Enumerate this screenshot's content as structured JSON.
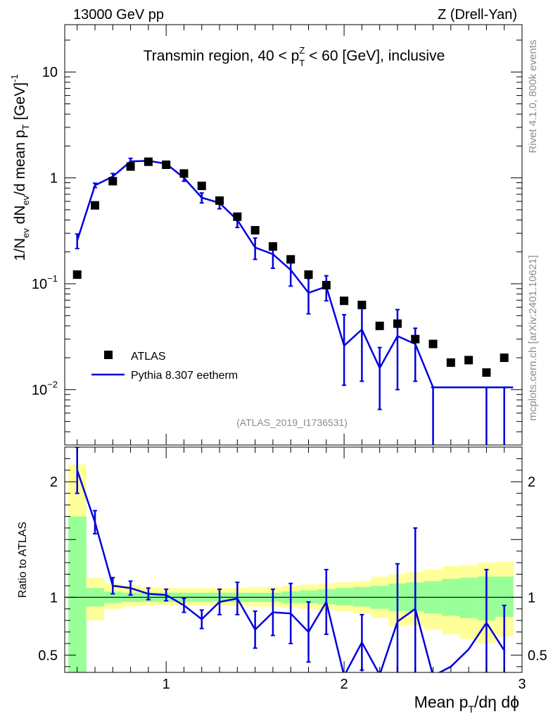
{
  "header": {
    "left": "13000 GeV pp",
    "right": "Z (Drell-Yan)"
  },
  "side": {
    "rivet": "Rivet 4.1.0,  800k events",
    "mcplots": "mcplots.cern.ch [arXiv:2401.10621]"
  },
  "chart_data": [
    {
      "type": "scatter",
      "panel": "main",
      "title": "Transmin region, 40 < p_T^Z < 60 [GeV], inclusive",
      "title_parts": {
        "a": "Transmin region, 40 < p",
        "sup": "Z",
        "sub": "T",
        "b": " < 60 [GeV], inclusive"
      },
      "ylabel": "1/N_ev dN_ev/d mean p_T [GeV]^-1",
      "ylabel_parts": {
        "a": "1/N",
        "b": "ev",
        "c": " dN",
        "d": "ev",
        "e": "/d mean p",
        "f": "T",
        "g": " [GeV]",
        "h": "-1"
      },
      "yscale": "log",
      "ylim": [
        0.003,
        28
      ],
      "xlim": [
        0.43,
        3.0
      ],
      "yticks": [
        {
          "value": 10,
          "label": "10",
          "sup": ""
        },
        {
          "value": 1,
          "label": "1",
          "sup": ""
        },
        {
          "value": 0.1,
          "label": "10",
          "sup": "−1"
        },
        {
          "value": 0.01,
          "label": "10",
          "sup": "−2"
        }
      ],
      "watermark": "(ATLAS_2019_I1736531)",
      "legend_position": "bottom-left",
      "series": [
        {
          "name": "ATLAS",
          "style": "markers",
          "color": "#000000",
          "x": [
            0.5,
            0.6,
            0.7,
            0.8,
            0.9,
            1.0,
            1.1,
            1.2,
            1.3,
            1.4,
            1.5,
            1.6,
            1.7,
            1.8,
            1.9,
            2.0,
            2.1,
            2.2,
            2.3,
            2.4,
            2.5,
            2.6,
            2.7,
            2.8,
            2.9
          ],
          "y": [
            0.122,
            0.55,
            0.93,
            1.28,
            1.42,
            1.33,
            1.1,
            0.84,
            0.61,
            0.43,
            0.32,
            0.225,
            0.17,
            0.122,
            0.097,
            0.069,
            0.063,
            0.04,
            0.042,
            0.03,
            0.027,
            0.018,
            0.019,
            0.0145,
            0.02
          ]
        },
        {
          "name": "Pythia 8.307 eetherm",
          "style": "line",
          "color": "#0000e0",
          "x": [
            0.5,
            0.6,
            0.7,
            0.8,
            0.9,
            1.0,
            1.1,
            1.2,
            1.3,
            1.4,
            1.5,
            1.6,
            1.7,
            1.8,
            1.9,
            2.0,
            2.1,
            2.2,
            2.3,
            2.4,
            2.5,
            2.6,
            2.7,
            2.8,
            2.9
          ],
          "y": [
            0.255,
            0.85,
            1.03,
            1.43,
            1.45,
            1.36,
            1.0,
            0.65,
            0.58,
            0.4,
            0.22,
            0.19,
            0.135,
            0.082,
            0.094,
            0.026,
            0.037,
            0.016,
            0.032,
            0.027,
            0.0105,
            0.0105,
            0.0105,
            0.0105,
            0.0105
          ],
          "yerr_low": [
            0.04,
            0.04,
            0.07,
            0.1,
            0.08,
            0.06,
            0.07,
            0.07,
            0.07,
            0.06,
            0.05,
            0.05,
            0.04,
            0.03,
            0.025,
            0.015,
            0.025,
            0.0095,
            0.022,
            0.015,
            0.0105,
            0.0,
            0.0,
            0.0105,
            0.0105
          ],
          "yerr_high": [
            0.04,
            0.04,
            0.07,
            0.1,
            0.08,
            0.06,
            0.07,
            0.07,
            0.07,
            0.06,
            0.05,
            0.05,
            0.04,
            0.03,
            0.025,
            0.025,
            0.03,
            0.009,
            0.025,
            0.011,
            0.0,
            0.0,
            0.0,
            0.0,
            0.0
          ]
        }
      ]
    },
    {
      "type": "line",
      "panel": "ratio",
      "ylabel": "Ratio to ATLAS",
      "xlabel": "Mean p_T/dη dϕ",
      "xlabel_parts": {
        "a": "Mean p",
        "b": "T",
        "c": "/dη dϕ"
      },
      "ylim": [
        0.35,
        2.3
      ],
      "xlim": [
        0.43,
        3.0
      ],
      "xticks": [
        {
          "value": 1,
          "label": "1"
        },
        {
          "value": 2,
          "label": "2"
        },
        {
          "value": 3,
          "label": "3"
        }
      ],
      "yticks": [
        {
          "value": 0.5,
          "label": "0.5"
        },
        {
          "value": 1,
          "label": "1"
        },
        {
          "value": 2,
          "label": "2"
        }
      ],
      "bands": {
        "edges": [
          0.45,
          0.55,
          0.65,
          0.75,
          0.85,
          0.95,
          1.05,
          1.15,
          1.25,
          1.35,
          1.45,
          1.55,
          1.65,
          1.75,
          1.85,
          1.95,
          2.05,
          2.15,
          2.25,
          2.35,
          2.45,
          2.55,
          2.65,
          2.75,
          2.85,
          2.95
        ],
        "yellow_color": "#ffff99",
        "green_color": "#99ff99",
        "yellow_low": [
          0.3,
          0.8,
          0.9,
          0.92,
          0.93,
          0.93,
          0.93,
          0.93,
          0.93,
          0.93,
          0.92,
          0.92,
          0.91,
          0.9,
          0.89,
          0.88,
          0.86,
          0.82,
          0.75,
          0.76,
          0.72,
          0.68,
          0.64,
          0.6,
          0.66
        ],
        "yellow_high": [
          2.15,
          1.17,
          1.12,
          1.1,
          1.09,
          1.08,
          1.08,
          1.08,
          1.08,
          1.08,
          1.09,
          1.09,
          1.1,
          1.11,
          1.12,
          1.13,
          1.14,
          1.18,
          1.2,
          1.22,
          1.24,
          1.27,
          1.28,
          1.3,
          1.31
        ],
        "green_low": [
          0.3,
          0.92,
          0.95,
          0.96,
          0.96,
          0.96,
          0.96,
          0.96,
          0.96,
          0.96,
          0.96,
          0.96,
          0.95,
          0.95,
          0.94,
          0.93,
          0.92,
          0.9,
          0.88,
          0.88,
          0.86,
          0.84,
          0.82,
          0.8,
          0.83
        ],
        "green_high": [
          1.7,
          1.08,
          1.05,
          1.04,
          1.04,
          1.04,
          1.04,
          1.04,
          1.04,
          1.04,
          1.04,
          1.04,
          1.05,
          1.06,
          1.07,
          1.08,
          1.09,
          1.1,
          1.12,
          1.13,
          1.14,
          1.16,
          1.17,
          1.18,
          1.18
        ]
      },
      "series": [
        {
          "name": "Pythia 8.307 eetherm / ATLAS",
          "color": "#0000e0",
          "x": [
            0.5,
            0.6,
            0.7,
            0.8,
            0.9,
            1.0,
            1.1,
            1.2,
            1.3,
            1.4,
            1.5,
            1.6,
            1.7,
            1.8,
            1.9,
            2.0,
            2.1,
            2.2,
            2.3,
            2.4,
            2.5,
            2.6,
            2.7,
            2.8,
            2.9
          ],
          "y": [
            2.1,
            1.65,
            1.1,
            1.08,
            1.03,
            1.02,
            0.93,
            0.81,
            0.96,
            0.99,
            0.72,
            0.87,
            0.86,
            0.7,
            0.96,
            0.32,
            0.61,
            0.33,
            0.79,
            0.9,
            0.32,
            0.4,
            0.55,
            0.78,
            0.54
          ],
          "yerr_low": [
            0.2,
            0.1,
            0.07,
            0.06,
            0.05,
            0.05,
            0.06,
            0.08,
            0.11,
            0.14,
            0.16,
            0.2,
            0.26,
            0.26,
            0.28,
            0.0,
            0.24,
            0.0,
            0.5,
            0.6,
            0.0,
            0.0,
            0.0,
            0.78,
            0.54
          ],
          "yerr_high": [
            0.2,
            0.1,
            0.07,
            0.06,
            0.05,
            0.05,
            0.06,
            0.08,
            0.11,
            0.14,
            0.16,
            0.2,
            0.26,
            0.26,
            0.28,
            0.0,
            0.24,
            0.0,
            0.5,
            0.7,
            0.0,
            0.0,
            0.0,
            0.46,
            0.39
          ]
        }
      ]
    }
  ]
}
